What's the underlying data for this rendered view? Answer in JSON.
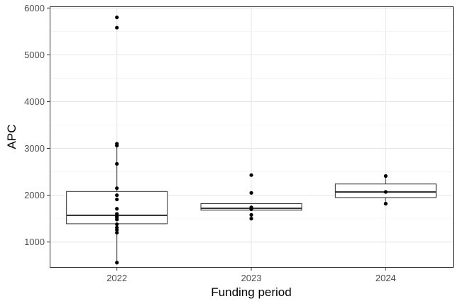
{
  "chart_data": {
    "type": "boxplot",
    "xlabel": "Funding period",
    "ylabel": "APC",
    "ylim": [
      450,
      6020
    ],
    "y_ticks": [
      1000,
      2000,
      3000,
      4000,
      5000,
      6000
    ],
    "categories": [
      "2022",
      "2023",
      "2024"
    ],
    "boxes": [
      {
        "category": "2022",
        "q1": 1390,
        "median": 1570,
        "q3": 2080,
        "whisker_low": 560,
        "whisker_high": 3100
      },
      {
        "category": "2023",
        "q1": 1680,
        "median": 1720,
        "q3": 1820,
        "whisker_low": 1680,
        "whisker_high": 1820
      },
      {
        "category": "2024",
        "q1": 1950,
        "median": 2070,
        "q3": 2240,
        "whisker_low": 1820,
        "whisker_high": 2410
      }
    ],
    "points": [
      {
        "category": "2022",
        "values": [
          5800,
          5580,
          3100,
          3060,
          2670,
          2150,
          2000,
          1910,
          1710,
          1600,
          1550,
          1520,
          1480,
          1380,
          1310,
          1260,
          1200,
          560
        ]
      },
      {
        "category": "2023",
        "values": [
          2430,
          2050,
          1740,
          1700,
          1580,
          1500
        ]
      },
      {
        "category": "2024",
        "values": [
          2410,
          2070,
          1820
        ]
      }
    ],
    "grid": true,
    "legend": "none"
  }
}
